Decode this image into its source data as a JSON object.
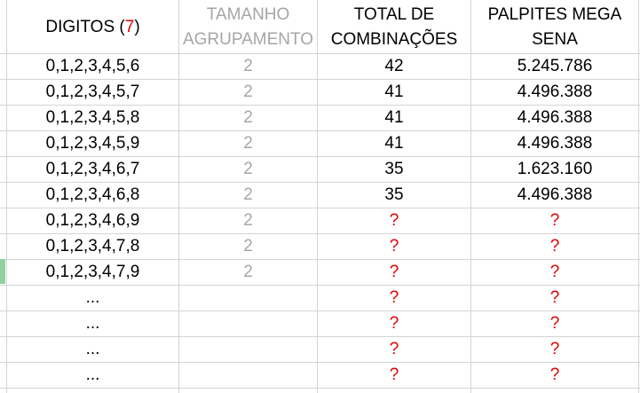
{
  "header": {
    "col1_label": "DIGITOS (",
    "col1_number": "7",
    "col1_close": ")",
    "col2_line1": "TAMANHO",
    "col2_line2": "AGRUPAMENTO",
    "col3_line1": "TOTAL DE",
    "col3_line2": "COMBINAÇÕES",
    "col4_line1": "PALPITES MEGA",
    "col4_line2": "SENA"
  },
  "rows": [
    {
      "digits": "0,1,2,3,4,5,6",
      "group": "2",
      "total": "42",
      "palpites": "5.245.786"
    },
    {
      "digits": "0,1,2,3,4,5,7",
      "group": "2",
      "total": "41",
      "palpites": "4.496.388"
    },
    {
      "digits": "0,1,2,3,4,5,8",
      "group": "2",
      "total": "41",
      "palpites": "4.496.388"
    },
    {
      "digits": "0,1,2,3,4,5,9",
      "group": "2",
      "total": "41",
      "palpites": "4.496.388"
    },
    {
      "digits": "0,1,2,3,4,6,7",
      "group": "2",
      "total": "35",
      "palpites": "1.623.160"
    },
    {
      "digits": "0,1,2,3,4,6,8",
      "group": "2",
      "total": "35",
      "palpites": "4.496.388"
    },
    {
      "digits": "0,1,2,3,4,6,9",
      "group": "2",
      "total": "?",
      "palpites": "?"
    },
    {
      "digits": "0,1,2,3,4,7,8",
      "group": "2",
      "total": "?",
      "palpites": "?"
    },
    {
      "digits": "0,1,2,3,4,7,9",
      "group": "2",
      "total": "?",
      "palpites": "?"
    },
    {
      "digits": "...",
      "group": "",
      "total": "?",
      "palpites": "?"
    },
    {
      "digits": "...",
      "group": "",
      "total": "?",
      "palpites": "?"
    },
    {
      "digits": "...",
      "group": "",
      "total": "?",
      "palpites": "?"
    },
    {
      "digits": "...",
      "group": "",
      "total": "?",
      "palpites": "?"
    }
  ],
  "colors": {
    "grid": "#d4d4d4",
    "gray_text": "#a6a6a6",
    "red_text": "#e00000",
    "selected_row_marker": "#8fd19e"
  }
}
